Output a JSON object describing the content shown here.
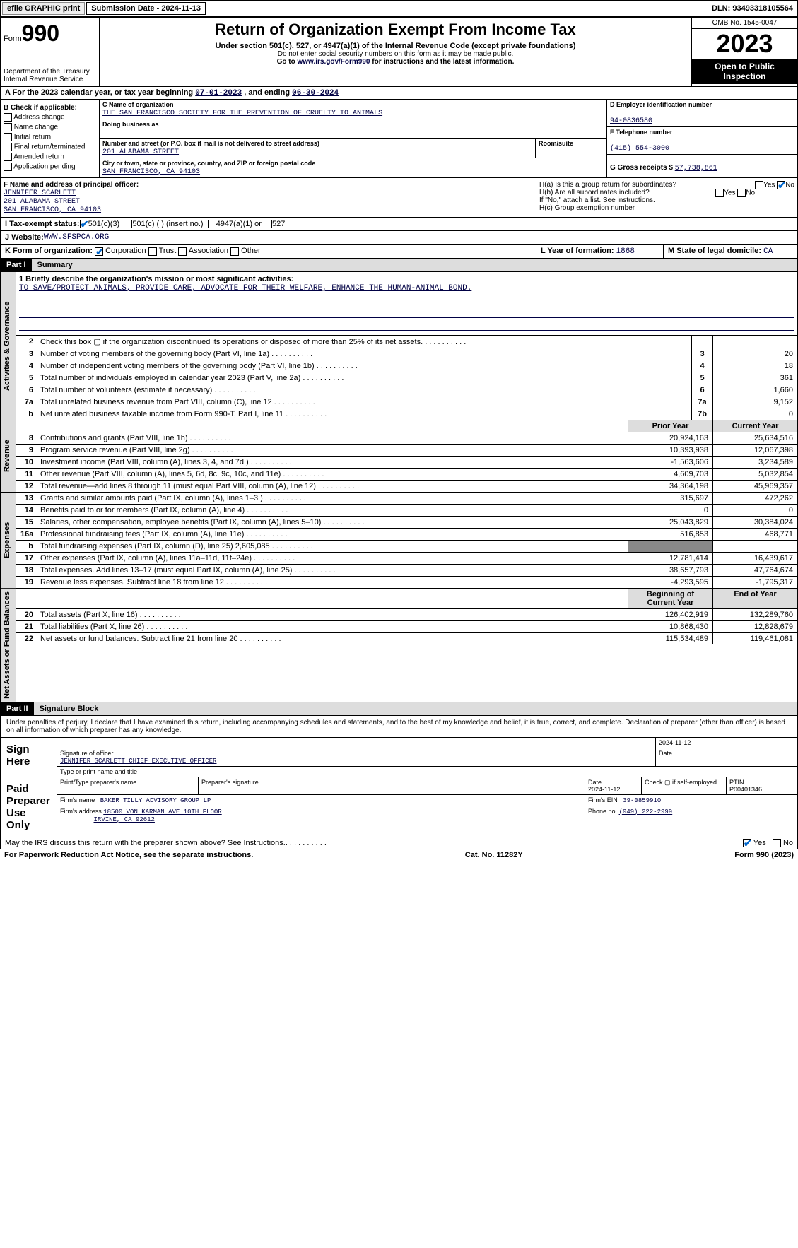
{
  "topbar": {
    "btn1": "efile GRAPHIC print",
    "sub_date_label": "Submission Date - 2024-11-13",
    "dln": "DLN: 93493318105564"
  },
  "header": {
    "form_word": "Form",
    "form_num": "990",
    "dept": "Department of the Treasury Internal Revenue Service",
    "title": "Return of Organization Exempt From Income Tax",
    "sub": "Under section 501(c), 527, or 4947(a)(1) of the Internal Revenue Code (except private foundations)",
    "ssn": "Do not enter social security numbers on this form as it may be made public.",
    "goto_pre": "Go to ",
    "goto_link": "www.irs.gov/Form990",
    "goto_post": " for instructions and the latest information.",
    "omb": "OMB No. 1545-0047",
    "year": "2023",
    "otp": "Open to Public Inspection"
  },
  "rowA": {
    "prefix": "A For the 2023 calendar year, or tax year beginning ",
    "begin": "07-01-2023",
    "mid": " , and ending ",
    "end": "06-30-2024"
  },
  "colB": {
    "lbl": "B Check if applicable:",
    "items": [
      "Address change",
      "Name change",
      "Initial return",
      "Final return/terminated",
      "Amended return",
      "Application pending"
    ]
  },
  "boxC": {
    "name_lbl": "C Name of organization",
    "name": "THE SAN FRANCISCO SOCIETY FOR THE PREVENTION OF CRUELTY TO ANIMALS",
    "dba_lbl": "Doing business as",
    "addr_lbl": "Number and street (or P.O. box if mail is not delivered to street address)",
    "addr": "201 ALABAMA STREET",
    "room_lbl": "Room/suite",
    "city_lbl": "City or town, state or province, country, and ZIP or foreign postal code",
    "city": "SAN FRANCISCO, CA  94103"
  },
  "boxD": {
    "lbl": "D Employer identification number",
    "val": "94-0836580"
  },
  "boxE": {
    "lbl": "E Telephone number",
    "val": "(415) 554-3000"
  },
  "boxG": {
    "lbl": "G Gross receipts $",
    "val": "57,738,861"
  },
  "boxF": {
    "lbl": "F  Name and address of principal officer:",
    "name": "JENNIFER SCARLETT",
    "addr1": "201 ALABAMA STREET",
    "addr2": "SAN FRANCISCO, CA  94103"
  },
  "boxH": {
    "a": "H(a)  Is this a group return for subordinates?",
    "b": "H(b)  Are all subordinates included?",
    "note": "If \"No,\" attach a list. See instructions.",
    "c": "H(c)  Group exemption number"
  },
  "rowI": {
    "lbl": "I   Tax-exempt status:",
    "o1": "501(c)(3)",
    "o2": "501(c) (  ) (insert no.)",
    "o3": "4947(a)(1) or",
    "o4": "527"
  },
  "rowJ": {
    "lbl": "J   Website:",
    "val": "WWW.SFSPCA.ORG"
  },
  "rowK": {
    "lbl": "K Form of organization:",
    "o1": "Corporation",
    "o2": "Trust",
    "o3": "Association",
    "o4": "Other"
  },
  "rowL": {
    "lbl": "L Year of formation:",
    "val": "1868"
  },
  "rowM": {
    "lbl": "M State of legal domicile:",
    "val": "CA"
  },
  "part1": {
    "hdr": "Part I",
    "title": "Summary"
  },
  "mission": {
    "lbl": "1   Briefly describe the organization's mission or most significant activities:",
    "text": "TO SAVE/PROTECT ANIMALS, PROVIDE CARE, ADVOCATE FOR THEIR WELFARE, ENHANCE THE HUMAN-ANIMAL BOND."
  },
  "gov_lines": [
    {
      "n": "2",
      "d": "Check this box ▢ if the organization discontinued its operations or disposed of more than 25% of its net assets.",
      "box": "",
      "v": ""
    },
    {
      "n": "3",
      "d": "Number of voting members of the governing body (Part VI, line 1a)",
      "box": "3",
      "v": "20"
    },
    {
      "n": "4",
      "d": "Number of independent voting members of the governing body (Part VI, line 1b)",
      "box": "4",
      "v": "18"
    },
    {
      "n": "5",
      "d": "Total number of individuals employed in calendar year 2023 (Part V, line 2a)",
      "box": "5",
      "v": "361"
    },
    {
      "n": "6",
      "d": "Total number of volunteers (estimate if necessary)",
      "box": "6",
      "v": "1,660"
    },
    {
      "n": "7a",
      "d": "Total unrelated business revenue from Part VIII, column (C), line 12",
      "box": "7a",
      "v": "9,152"
    },
    {
      "n": "b",
      "d": "Net unrelated business taxable income from Form 990-T, Part I, line 11",
      "box": "7b",
      "v": "0"
    }
  ],
  "rev_hdr": {
    "py": "Prior Year",
    "cy": "Current Year"
  },
  "rev_lines": [
    {
      "n": "8",
      "d": "Contributions and grants (Part VIII, line 1h)",
      "py": "20,924,163",
      "cy": "25,634,516"
    },
    {
      "n": "9",
      "d": "Program service revenue (Part VIII, line 2g)",
      "py": "10,393,938",
      "cy": "12,067,398"
    },
    {
      "n": "10",
      "d": "Investment income (Part VIII, column (A), lines 3, 4, and 7d )",
      "py": "-1,563,606",
      "cy": "3,234,589"
    },
    {
      "n": "11",
      "d": "Other revenue (Part VIII, column (A), lines 5, 6d, 8c, 9c, 10c, and 11e)",
      "py": "4,609,703",
      "cy": "5,032,854"
    },
    {
      "n": "12",
      "d": "Total revenue—add lines 8 through 11 (must equal Part VIII, column (A), line 12)",
      "py": "34,364,198",
      "cy": "45,969,357"
    }
  ],
  "exp_lines": [
    {
      "n": "13",
      "d": "Grants and similar amounts paid (Part IX, column (A), lines 1–3 )",
      "py": "315,697",
      "cy": "472,262"
    },
    {
      "n": "14",
      "d": "Benefits paid to or for members (Part IX, column (A), line 4)",
      "py": "0",
      "cy": "0"
    },
    {
      "n": "15",
      "d": "Salaries, other compensation, employee benefits (Part IX, column (A), lines 5–10)",
      "py": "25,043,829",
      "cy": "30,384,024"
    },
    {
      "n": "16a",
      "d": "Professional fundraising fees (Part IX, column (A), line 11e)",
      "py": "516,853",
      "cy": "468,771"
    },
    {
      "n": "b",
      "d": "Total fundraising expenses (Part IX, column (D), line 25) 2,605,085",
      "py": "",
      "cy": "",
      "shade": true
    },
    {
      "n": "17",
      "d": "Other expenses (Part IX, column (A), lines 11a–11d, 11f–24e)",
      "py": "12,781,414",
      "cy": "16,439,617"
    },
    {
      "n": "18",
      "d": "Total expenses. Add lines 13–17 (must equal Part IX, column (A), line 25)",
      "py": "38,657,793",
      "cy": "47,764,674"
    },
    {
      "n": "19",
      "d": "Revenue less expenses. Subtract line 18 from line 12",
      "py": "-4,293,595",
      "cy": "-1,795,317"
    }
  ],
  "na_hdr": {
    "py": "Beginning of Current Year",
    "cy": "End of Year"
  },
  "na_lines": [
    {
      "n": "20",
      "d": "Total assets (Part X, line 16)",
      "py": "126,402,919",
      "cy": "132,289,760"
    },
    {
      "n": "21",
      "d": "Total liabilities (Part X, line 26)",
      "py": "10,868,430",
      "cy": "12,828,679"
    },
    {
      "n": "22",
      "d": "Net assets or fund balances. Subtract line 21 from line 20",
      "py": "115,534,489",
      "cy": "119,461,081"
    }
  ],
  "part2": {
    "hdr": "Part II",
    "title": "Signature Block"
  },
  "sig": {
    "decl": "Under penalties of perjury, I declare that I have examined this return, including accompanying schedules and statements, and to the best of my knowledge and belief, it is true, correct, and complete. Declaration of preparer (other than officer) is based on all information of which preparer has any knowledge.",
    "sign_here": "Sign Here",
    "sig_of_officer": "Signature of officer",
    "officer": "JENNIFER SCARLETT  CHIEF EXECUTIVE OFFICER",
    "type_name": "Type or print name and title",
    "date1": "2024-11-12",
    "date_lbl": "Date",
    "paid": "Paid Preparer Use Only",
    "prep_name_lbl": "Print/Type preparer's name",
    "prep_sig_lbl": "Preparer's signature",
    "date2": "2024-11-12",
    "self_emp": "Check ▢ if self-employed",
    "ptin_lbl": "PTIN",
    "ptin": "P00401346",
    "firm_name_lbl": "Firm's name",
    "firm_name": "BAKER TILLY ADVISORY GROUP LP",
    "firm_ein_lbl": "Firm's EIN",
    "firm_ein": "39-0859910",
    "firm_addr_lbl": "Firm's address",
    "firm_addr1": "18500 VON KARMAN AVE 10TH FLOOR",
    "firm_addr2": "IRVINE, CA  92612",
    "phone_lbl": "Phone no.",
    "phone": "(949) 222-2999"
  },
  "footer": {
    "discuss": "May the IRS discuss this return with the preparer shown above? See Instructions.",
    "yes": "Yes",
    "no": "No",
    "pra": "For Paperwork Reduction Act Notice, see the separate instructions.",
    "cat": "Cat. No. 11282Y",
    "form": "Form 990 (2023)"
  },
  "vtabs": {
    "gov": "Activities & Governance",
    "rev": "Revenue",
    "exp": "Expenses",
    "na": "Net Assets or Fund Balances"
  }
}
